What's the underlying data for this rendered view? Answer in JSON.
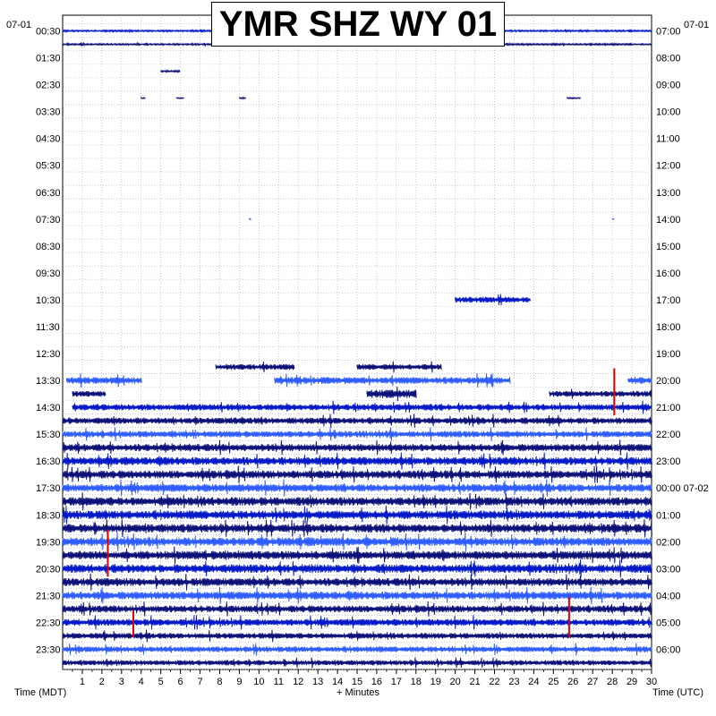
{
  "title": "YMR SHZ WY 01",
  "date_left": "07-01",
  "date_right": "07-01",
  "xlabel_left": "Time (MDT)",
  "xlabel_center": "+ Minutes",
  "xlabel_right": "Time (UTC)",
  "colors": {
    "trace_dark": "#0b0f78",
    "trace_mid": "#0018c8",
    "trace_light": "#2e5cff",
    "event": "#e00000",
    "grid": "#a8a8a8"
  },
  "chart_data": {
    "type": "heatmap",
    "description_type": "helicorder",
    "x_ticks": [
      "1",
      "2",
      "3",
      "4",
      "5",
      "6",
      "7",
      "8",
      "9",
      "10",
      "11",
      "12",
      "13",
      "14",
      "15",
      "16",
      "17",
      "18",
      "19",
      "20",
      "21",
      "22",
      "23",
      "24",
      "25",
      "26",
      "27",
      "28",
      "29",
      "30"
    ],
    "xlim": [
      0,
      30
    ],
    "left_time_labels": [
      "00:30",
      "01:30",
      "02:30",
      "03:30",
      "04:30",
      "05:30",
      "06:30",
      "07:30",
      "08:30",
      "09:30",
      "10:30",
      "11:30",
      "12:30",
      "13:30",
      "14:30",
      "15:30",
      "16:30",
      "17:30",
      "18:30",
      "19:30",
      "20:30",
      "21:30",
      "22:30",
      "23:30"
    ],
    "right_time_labels": [
      "07:00",
      "08:00",
      "09:00",
      "10:00",
      "11:00",
      "12:00",
      "13:00",
      "14:00",
      "15:00",
      "16:00",
      "17:00",
      "18:00",
      "19:00",
      "20:00",
      "21:00",
      "22:00",
      "23:00",
      "00:00 07-02",
      "01:00",
      "02:00",
      "03:00",
      "04:00",
      "05:00",
      "06:00"
    ],
    "rows_per_hour": 2,
    "trace_segments": [
      {
        "row": 0,
        "start": 0,
        "end": 30,
        "level": 0.3
      },
      {
        "row": 1,
        "start": 0,
        "end": 30,
        "level": 0.3
      },
      {
        "row": 3,
        "start": 5.0,
        "end": 6.0,
        "level": 0.3
      },
      {
        "row": 5,
        "start": 4.0,
        "end": 4.2,
        "level": 0.2
      },
      {
        "row": 5,
        "start": 5.8,
        "end": 6.2,
        "level": 0.2
      },
      {
        "row": 5,
        "start": 9.0,
        "end": 9.3,
        "level": 0.2
      },
      {
        "row": 5,
        "start": 25.7,
        "end": 26.4,
        "level": 0.2
      },
      {
        "row": 14,
        "start": 9.5,
        "end": 9.6,
        "level": 0.2
      },
      {
        "row": 14,
        "start": 28.0,
        "end": 28.1,
        "level": 0.2
      },
      {
        "row": 20,
        "start": 20.0,
        "end": 23.8,
        "level": 1.0
      },
      {
        "row": 25,
        "start": 7.8,
        "end": 11.8,
        "level": 1.0
      },
      {
        "row": 25,
        "start": 15.0,
        "end": 19.3,
        "level": 1.0
      },
      {
        "row": 26,
        "start": 0.2,
        "end": 4.0,
        "level": 1.2
      },
      {
        "row": 26,
        "start": 10.8,
        "end": 22.8,
        "level": 1.2
      },
      {
        "row": 26,
        "start": 28.8,
        "end": 30,
        "level": 1.2
      },
      {
        "row": 27,
        "start": 0.5,
        "end": 2.2,
        "level": 1.0
      },
      {
        "row": 27,
        "start": 15.5,
        "end": 18.0,
        "level": 1.5
      },
      {
        "row": 27,
        "start": 24.8,
        "end": 30,
        "level": 1.0
      },
      {
        "row": 28,
        "start": 0.5,
        "end": 30,
        "level": 1.1
      },
      {
        "row": 29,
        "start": 0,
        "end": 30,
        "level": 1.1
      },
      {
        "row": 30,
        "start": 0,
        "end": 30,
        "level": 1.1
      },
      {
        "row": 31,
        "start": 0,
        "end": 30,
        "level": 1.3
      },
      {
        "row": 32,
        "start": 0,
        "end": 30,
        "level": 1.4
      },
      {
        "row": 33,
        "start": 0,
        "end": 30,
        "level": 1.4
      },
      {
        "row": 34,
        "start": 0,
        "end": 30,
        "level": 1.4
      },
      {
        "row": 35,
        "start": 0,
        "end": 30,
        "level": 1.5
      },
      {
        "row": 36,
        "start": 0,
        "end": 30,
        "level": 1.5
      },
      {
        "row": 37,
        "start": 0,
        "end": 30,
        "level": 1.5
      },
      {
        "row": 38,
        "start": 0,
        "end": 30,
        "level": 1.5
      },
      {
        "row": 39,
        "start": 0,
        "end": 30,
        "level": 1.5
      },
      {
        "row": 40,
        "start": 0,
        "end": 30,
        "level": 1.5
      },
      {
        "row": 41,
        "start": 0,
        "end": 30,
        "level": 1.4
      },
      {
        "row": 42,
        "start": 0,
        "end": 30,
        "level": 1.4
      },
      {
        "row": 43,
        "start": 0,
        "end": 30,
        "level": 1.2
      },
      {
        "row": 44,
        "start": 0,
        "end": 30,
        "level": 1.2
      },
      {
        "row": 45,
        "start": 0,
        "end": 30,
        "level": 1.0
      },
      {
        "row": 46,
        "start": 0,
        "end": 30,
        "level": 1.0
      },
      {
        "row": 47,
        "start": 0,
        "end": 30,
        "level": 0.9
      }
    ],
    "events": [
      {
        "row": 26,
        "minute": 28.1,
        "rows_spanned": 3.5,
        "color": "#e00000"
      },
      {
        "row": 38,
        "minute": 2.3,
        "rows_spanned": 3.5,
        "color": "#e00000"
      },
      {
        "row": 44,
        "minute": 3.6,
        "rows_spanned": 2.0,
        "color": "#e00000"
      },
      {
        "row": 43,
        "minute": 25.8,
        "rows_spanned": 3.0,
        "color": "#e00000"
      }
    ]
  }
}
